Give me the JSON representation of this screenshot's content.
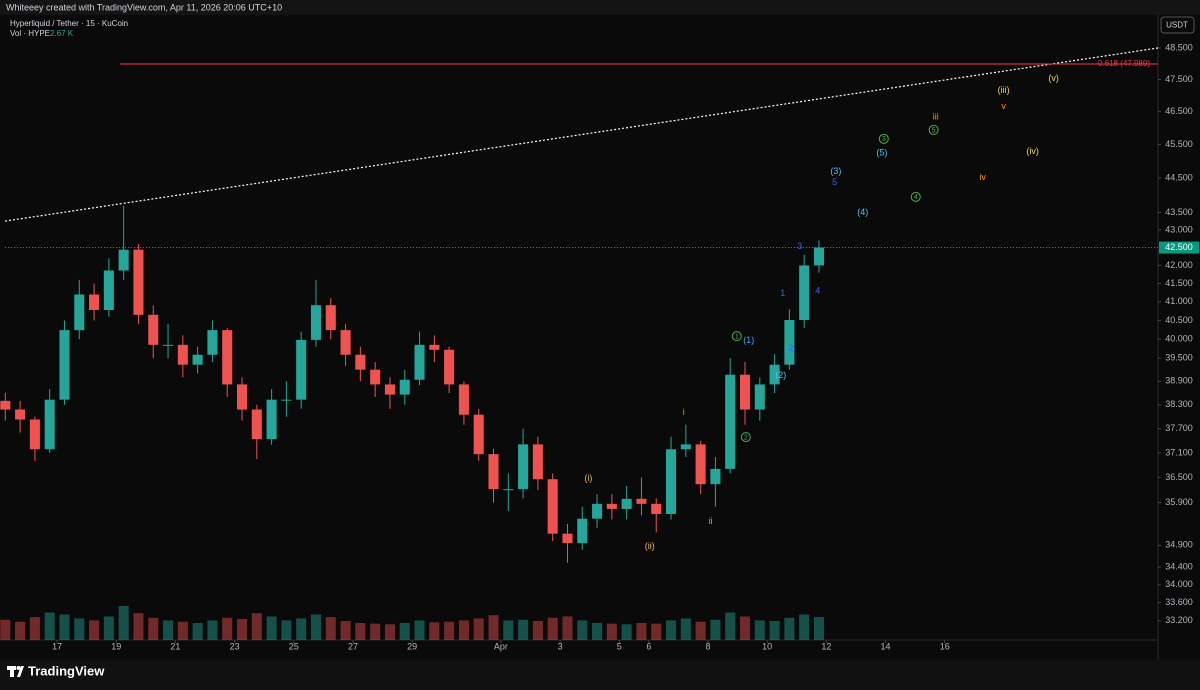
{
  "header": {
    "credit": "Whiteeey created with TradingView.com, Apr 11, 2026 20:06 UTC+10",
    "symbol": "Hyperliquid / Tether · 15 · KuCoin",
    "volume_label": "Vol · HYPE",
    "volume_value": "2.67 K",
    "currency": "USDT"
  },
  "footer": {
    "brand": "TradingView"
  },
  "chart_data": {
    "type": "candlestick",
    "x": [
      "2026-03-15T06:00",
      "2026-03-15T18:00",
      "2026-03-16T06:00",
      "2026-03-16T18:00",
      "2026-03-17T06:00",
      "2026-03-17T18:00",
      "2026-03-18T06:00",
      "2026-03-18T18:00",
      "2026-03-19T06:00",
      "2026-03-19T18:00",
      "2026-03-20T06:00",
      "2026-03-20T18:00",
      "2026-03-21T06:00",
      "2026-03-21T18:00",
      "2026-03-22T06:00",
      "2026-03-22T18:00",
      "2026-03-23T06:00",
      "2026-03-23T18:00",
      "2026-03-24T06:00",
      "2026-03-24T18:00",
      "2026-03-25T06:00",
      "2026-03-25T18:00",
      "2026-03-26T06:00",
      "2026-03-26T18:00",
      "2026-03-27T06:00",
      "2026-03-27T18:00",
      "2026-03-28T06:00",
      "2026-03-28T18:00",
      "2026-03-29T06:00",
      "2026-03-29T18:00",
      "2026-03-30T06:00",
      "2026-03-30T18:00",
      "2026-03-31T06:00",
      "2026-03-31T18:00",
      "2026-04-01T06:00",
      "2026-04-01T18:00",
      "2026-04-02T06:00",
      "2026-04-02T18:00",
      "2026-04-03T06:00",
      "2026-04-03T18:00",
      "2026-04-04T06:00",
      "2026-04-04T18:00",
      "2026-04-05T06:00",
      "2026-04-05T18:00",
      "2026-04-06T06:00",
      "2026-04-06T18:00",
      "2026-04-07T06:00",
      "2026-04-07T18:00",
      "2026-04-08T06:00",
      "2026-04-08T18:00",
      "2026-04-09T06:00",
      "2026-04-09T18:00",
      "2026-04-10T06:00",
      "2026-04-10T18:00",
      "2026-04-11T06:00",
      "2026-04-11T18:00"
    ],
    "open": [
      38.4,
      38.18,
      37.93,
      37.19,
      38.43,
      40.24,
      41.2,
      40.78,
      41.86,
      42.44,
      40.65,
      39.85,
      39.85,
      39.33,
      39.59,
      40.24,
      38.82,
      38.18,
      37.44,
      38.43,
      38.43,
      39.98,
      40.91,
      40.24,
      39.59,
      39.2,
      38.82,
      38.56,
      38.94,
      39.85,
      39.72,
      38.82,
      38.05,
      37.07,
      36.22,
      36.22,
      37.31,
      36.46,
      35.17,
      34.95,
      35.52,
      35.87,
      35.75,
      35.99,
      35.87,
      35.63,
      37.19,
      37.31,
      36.34,
      36.71,
      39.07,
      38.18,
      38.82,
      39.33,
      40.51,
      42.0
    ],
    "high": [
      38.6,
      38.4,
      38.0,
      38.7,
      40.5,
      41.6,
      41.5,
      42.2,
      43.7,
      42.6,
      40.9,
      40.4,
      40.1,
      39.8,
      40.5,
      40.3,
      39.0,
      38.3,
      38.7,
      38.9,
      40.2,
      41.6,
      41.1,
      40.4,
      39.8,
      39.4,
      39.0,
      39.2,
      40.2,
      40.1,
      39.8,
      38.9,
      38.2,
      37.2,
      36.6,
      37.7,
      37.5,
      36.6,
      35.4,
      35.8,
      36.1,
      36.1,
      36.3,
      36.5,
      36.0,
      37.5,
      37.8,
      37.4,
      37.0,
      39.5,
      39.4,
      39.0,
      39.6,
      40.8,
      42.3,
      42.7
    ],
    "low": [
      37.9,
      37.6,
      36.9,
      37.1,
      38.3,
      40.0,
      40.5,
      40.6,
      41.6,
      40.4,
      39.5,
      39.5,
      39.0,
      39.1,
      39.4,
      38.5,
      37.9,
      36.95,
      37.3,
      38.0,
      38.2,
      39.8,
      40.0,
      39.3,
      38.9,
      38.5,
      38.2,
      38.3,
      38.8,
      39.4,
      38.6,
      37.8,
      36.9,
      35.9,
      35.7,
      36.0,
      36.2,
      35.0,
      34.5,
      34.8,
      35.3,
      35.5,
      35.5,
      35.6,
      35.2,
      35.5,
      37.0,
      36.1,
      35.8,
      36.6,
      37.8,
      37.9,
      38.6,
      39.2,
      40.3,
      41.8
    ],
    "close": [
      38.18,
      37.93,
      37.19,
      38.43,
      40.24,
      41.2,
      40.78,
      41.86,
      42.44,
      40.65,
      39.85,
      39.85,
      39.33,
      39.59,
      40.24,
      38.82,
      38.18,
      37.44,
      38.43,
      38.43,
      39.98,
      40.91,
      40.24,
      39.59,
      39.2,
      38.82,
      38.56,
      38.94,
      39.85,
      39.72,
      38.82,
      38.05,
      37.07,
      36.22,
      36.22,
      37.31,
      36.46,
      35.17,
      34.95,
      35.52,
      35.87,
      35.75,
      35.99,
      35.87,
      35.63,
      37.19,
      37.31,
      36.34,
      36.71,
      39.07,
      38.18,
      38.82,
      39.33,
      40.51,
      42.0,
      42.5
    ],
    "volume": [
      310,
      280,
      350,
      420,
      390,
      330,
      300,
      360,
      520,
      410,
      340,
      300,
      280,
      260,
      300,
      340,
      320,
      410,
      360,
      300,
      330,
      390,
      350,
      290,
      260,
      250,
      240,
      260,
      300,
      270,
      280,
      300,
      330,
      380,
      300,
      310,
      290,
      340,
      360,
      300,
      260,
      250,
      240,
      260,
      250,
      300,
      330,
      280,
      310,
      420,
      360,
      300,
      290,
      340,
      390,
      350
    ],
    "up_color": "#26a69a",
    "down_color": "#ef5350",
    "log_scale": true,
    "xlim": [
      "2026-03-15T05:45",
      "2026-04-23T05:00"
    ],
    "ylim": [
      32.78,
      49.57
    ],
    "yticks": [
      {
        "value": 48.5,
        "label": "48.500"
      },
      {
        "value": 47.5,
        "label": "47.500"
      },
      {
        "value": 46.5,
        "label": "46.500"
      },
      {
        "value": 45.5,
        "label": "45.500"
      },
      {
        "value": 44.5,
        "label": "44.500"
      },
      {
        "value": 43.5,
        "label": "43.500"
      },
      {
        "value": 43.0,
        "label": "43.000"
      },
      {
        "value": 42.0,
        "label": "42.000"
      },
      {
        "value": 41.5,
        "label": "41.500"
      },
      {
        "value": 41.0,
        "label": "41.000"
      },
      {
        "value": 40.5,
        "label": "40.500"
      },
      {
        "value": 40.0,
        "label": "40.000"
      },
      {
        "value": 39.5,
        "label": "39.500"
      },
      {
        "value": 38.9,
        "label": "38.900"
      },
      {
        "value": 38.3,
        "label": "38.300"
      },
      {
        "value": 37.7,
        "label": "37.700"
      },
      {
        "value": 37.1,
        "label": "37.100"
      },
      {
        "value": 36.5,
        "label": "36.500"
      },
      {
        "value": 35.9,
        "label": "35.900"
      },
      {
        "value": 34.9,
        "label": "34.900"
      },
      {
        "value": 34.4,
        "label": "34.400"
      },
      {
        "value": 34.0,
        "label": "34.000"
      },
      {
        "value": 33.6,
        "label": "33.600"
      },
      {
        "value": 33.2,
        "label": "33.200"
      }
    ],
    "xticks": [
      {
        "value": "2026-03-17T00:00",
        "label": "17"
      },
      {
        "value": "2026-03-19T00:00",
        "label": "19"
      },
      {
        "value": "2026-03-21T00:00",
        "label": "21"
      },
      {
        "value": "2026-03-23T00:00",
        "label": "23"
      },
      {
        "value": "2026-03-25T00:00",
        "label": "25"
      },
      {
        "value": "2026-03-27T00:00",
        "label": "27"
      },
      {
        "value": "2026-03-29T00:00",
        "label": "29"
      },
      {
        "value": "2026-04-01T00:00",
        "label": "Apr"
      },
      {
        "value": "2026-04-03T00:00",
        "label": "3"
      },
      {
        "value": "2026-04-05T00:00",
        "label": "5"
      },
      {
        "value": "2026-04-06T00:00",
        "label": "6"
      },
      {
        "value": "2026-04-08T00:00",
        "label": "8"
      },
      {
        "value": "2026-04-10T00:00",
        "label": "10"
      },
      {
        "value": "2026-04-12T00:00",
        "label": "12"
      },
      {
        "value": "2026-04-14T00:00",
        "label": "14"
      },
      {
        "value": "2026-04-16T00:00",
        "label": "16"
      }
    ],
    "last_price": {
      "value": 42.5,
      "label": "42.500",
      "color": "#089981"
    },
    "fib_level": {
      "value": 47.989,
      "label": "0.618 (47.989)",
      "color": "#f23645",
      "x_start": "2026-03-19T03:00"
    },
    "trendline": {
      "x": [
        "2026-03-15T05:45",
        "2026-04-23T05:00"
      ],
      "y": [
        43.25,
        48.5
      ],
      "color": "#ffffff"
    },
    "annotations": [
      {
        "text": "(i)",
        "x": "2026-04-03T23:00",
        "y": 36.49,
        "color": "#f0b45a"
      },
      {
        "text": "(ii)",
        "x": "2026-04-06T00:45",
        "y": 34.88,
        "color": "#f0b45a"
      },
      {
        "text": "i",
        "x": "2026-04-07T04:20",
        "y": 38.12,
        "color": "#ff9800"
      },
      {
        "text": "ii",
        "x": "2026-04-08T02:10",
        "y": 35.46,
        "color": "#ff9800"
      },
      {
        "text": "1",
        "x": "2026-04-08T23:20",
        "y": 40.08,
        "color": "#4caf50",
        "circled": true
      },
      {
        "text": "(1)",
        "x": "2026-04-09T09:00",
        "y": 39.98,
        "color": "#42a5f5"
      },
      {
        "text": "2",
        "x": "2026-04-09T06:40",
        "y": 37.49,
        "color": "#4caf50",
        "circled": true
      },
      {
        "text": "1",
        "x": "2026-04-10T12:40",
        "y": 41.24,
        "color": "#2962ff"
      },
      {
        "text": "2",
        "x": "2026-04-10T19:10",
        "y": 39.77,
        "color": "#2962ff"
      },
      {
        "text": "(2)",
        "x": "2026-04-10T11:00",
        "y": 39.06,
        "color": "#4fc3f7"
      },
      {
        "text": "3",
        "x": "2026-04-11T02:25",
        "y": 42.54,
        "color": "#2962ff"
      },
      {
        "text": "4",
        "x": "2026-04-11T17:00",
        "y": 41.3,
        "color": "#2962ff"
      },
      {
        "text": "(3)",
        "x": "2026-04-12T07:40",
        "y": 44.71,
        "color": "#4fc3f7"
      },
      {
        "text": "5",
        "x": "2026-04-12T06:45",
        "y": 44.38,
        "color": "#2962ff"
      },
      {
        "text": "(4)",
        "x": "2026-04-13T05:30",
        "y": 43.51,
        "color": "#4fc3f7"
      },
      {
        "text": "3",
        "x": "2026-04-13T22:35",
        "y": 45.67,
        "color": "#4caf50",
        "circled": true
      },
      {
        "text": "(5)",
        "x": "2026-04-13T21:00",
        "y": 45.25,
        "color": "#4fc3f7"
      },
      {
        "text": "4",
        "x": "2026-04-15T00:30",
        "y": 43.95,
        "color": "#4caf50",
        "circled": true
      },
      {
        "text": "5",
        "x": "2026-04-15T15:00",
        "y": 45.94,
        "color": "#4caf50",
        "circled": true
      },
      {
        "text": "iii",
        "x": "2026-04-15T16:45",
        "y": 46.34,
        "color": "#ff9800"
      },
      {
        "text": "iv",
        "x": "2026-04-17T06:45",
        "y": 44.53,
        "color": "#ff9800"
      },
      {
        "text": "(iii)",
        "x": "2026-04-17T23:45",
        "y": 47.17,
        "color": "#f5d442"
      },
      {
        "text": "v",
        "x": "2026-04-17T23:45",
        "y": 46.67,
        "color": "#ff9800"
      },
      {
        "text": "(iv)",
        "x": "2026-04-18T23:20",
        "y": 45.3,
        "color": "#f5d442"
      },
      {
        "text": "(v)",
        "x": "2026-04-19T16:20",
        "y": 47.54,
        "color": "#f5d442"
      }
    ]
  }
}
